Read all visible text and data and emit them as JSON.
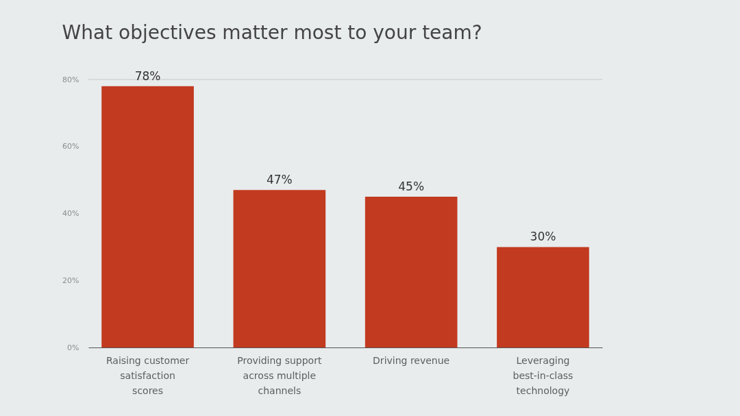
{
  "chart_data": {
    "type": "bar",
    "title": "What objectives matter most to your team?",
    "categories": [
      "Raising customer satisfaction scores",
      "Providing support across multiple channels",
      "Driving revenue",
      "Leveraging best-in-class technology"
    ],
    "values": [
      78,
      47,
      45,
      30
    ],
    "value_labels": [
      "78%",
      "47%",
      "45%",
      "30%"
    ],
    "color": "#c23a20",
    "ylim": [
      0,
      80
    ],
    "yticks": [
      {
        "value": 0,
        "label": "0%"
      },
      {
        "value": 20,
        "label": "20%"
      },
      {
        "value": 40,
        "label": "40%"
      },
      {
        "value": 60,
        "label": "60%"
      },
      {
        "value": 80,
        "label": "80%"
      }
    ],
    "ref_lines": [
      {
        "axis": "y",
        "value": 80,
        "color": "#c4c8c8"
      }
    ]
  }
}
